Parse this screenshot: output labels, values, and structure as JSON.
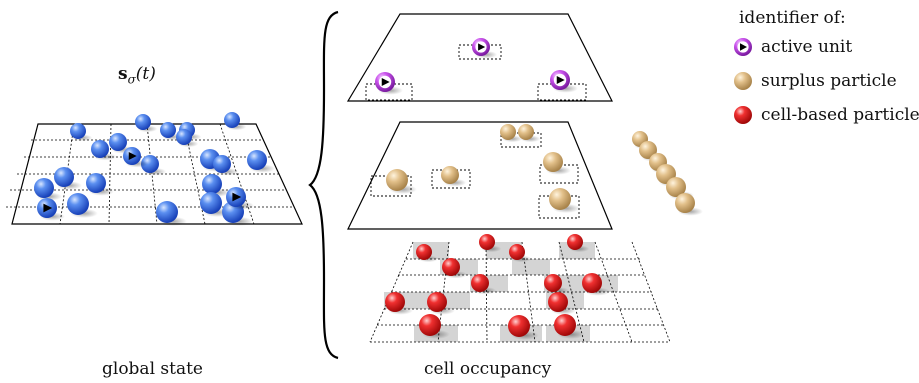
{
  "captions": {
    "global_state": "global state",
    "cell_occupancy": "cell occupancy"
  },
  "state_label": {
    "symbol": "s",
    "subscript": "σ",
    "argument": "(t)"
  },
  "legend": {
    "title": "identifier of:",
    "items": [
      {
        "label": "active unit",
        "kind": "active",
        "color": "#c040e0"
      },
      {
        "label": "surplus particle",
        "kind": "surplus",
        "color": "#d9b47a"
      },
      {
        "label": "cell-based particle",
        "kind": "cell",
        "color": "#e01818"
      }
    ]
  },
  "colors": {
    "global_particle": "#2f6fe8",
    "active_ring": "#c040e0",
    "surplus": "#d9b47a",
    "cell_particle": "#e01818",
    "occupied_cell": "#d4d4d4"
  }
}
